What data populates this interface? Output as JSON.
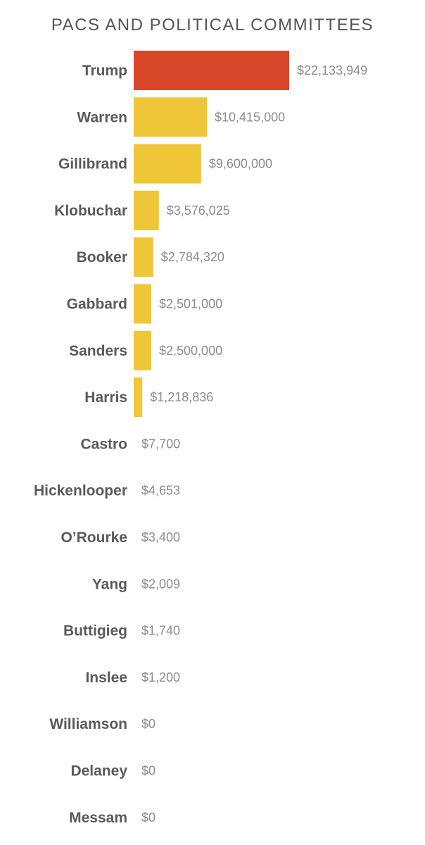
{
  "chart_data": {
    "type": "bar",
    "orientation": "horizontal",
    "title": "PACS AND POLITICAL COMMITTEES",
    "xlabel": "",
    "ylabel": "",
    "grid": false,
    "categories": [
      "Trump",
      "Warren",
      "Gillibrand",
      "Klobuchar",
      "Booker",
      "Gabbard",
      "Sanders",
      "Harris",
      "Castro",
      "Hickenlooper",
      "O’Rourke",
      "Yang",
      "Buttigieg",
      "Inslee",
      "Williamson",
      "Delaney",
      "Messam"
    ],
    "values": [
      22133949,
      10415000,
      9600000,
      3576025,
      2784320,
      2501000,
      2500000,
      1218836,
      7700,
      4653,
      3400,
      2009,
      1740,
      1200,
      0,
      0,
      0
    ],
    "value_labels": [
      "$22,133,949",
      "$10,415,000",
      "$9,600,000",
      "$3,576,025",
      "$2,784,320",
      "$2,501,000",
      "$2,500,000",
      "$1,218,836",
      "$7,700",
      "$4,653",
      "$3,400",
      "$2,009",
      "$1,740",
      "$1,200",
      "$0",
      "$0",
      "$0"
    ],
    "colors": {
      "highlight": "#d9472b",
      "default": "#efc638",
      "category_text": "#5a5a5a",
      "value_text": "#8c8c8c",
      "title_text": "#555555"
    },
    "highlight_index": 0
  }
}
